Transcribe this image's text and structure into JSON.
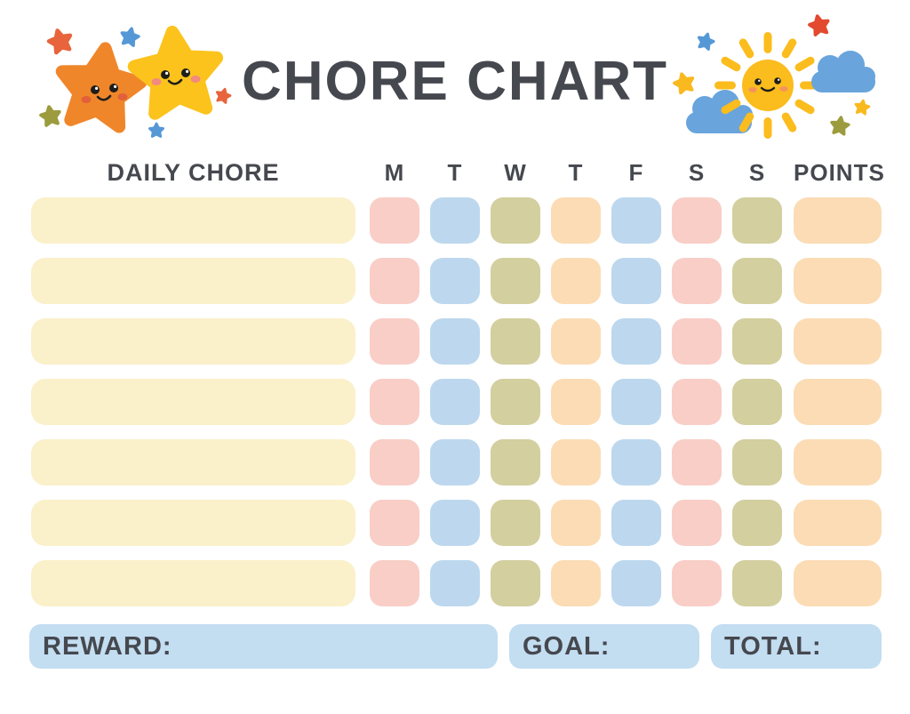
{
  "title": "CHORE CHART",
  "header": {
    "daily_chore_label": "DAILY CHORE",
    "day_labels": [
      "M",
      "T",
      "W",
      "T",
      "F",
      "S",
      "S"
    ],
    "points_label": "POINTS"
  },
  "grid": {
    "row_count": 7,
    "rows": [
      {
        "chore": "",
        "days": [
          "",
          "",
          "",
          "",
          "",
          "",
          ""
        ],
        "points": ""
      },
      {
        "chore": "",
        "days": [
          "",
          "",
          "",
          "",
          "",
          "",
          ""
        ],
        "points": ""
      },
      {
        "chore": "",
        "days": [
          "",
          "",
          "",
          "",
          "",
          "",
          ""
        ],
        "points": ""
      },
      {
        "chore": "",
        "days": [
          "",
          "",
          "",
          "",
          "",
          "",
          ""
        ],
        "points": ""
      },
      {
        "chore": "",
        "days": [
          "",
          "",
          "",
          "",
          "",
          "",
          ""
        ],
        "points": ""
      },
      {
        "chore": "",
        "days": [
          "",
          "",
          "",
          "",
          "",
          "",
          ""
        ],
        "points": ""
      },
      {
        "chore": "",
        "days": [
          "",
          "",
          "",
          "",
          "",
          "",
          ""
        ],
        "points": ""
      }
    ],
    "day_color_cycle": [
      "pink",
      "blue",
      "olive",
      "peach",
      "blue",
      "pink",
      "olive"
    ],
    "chore_color": "cream",
    "points_color": "peach"
  },
  "footer": {
    "reward_label": "REWARD:",
    "goal_label": "GOAL:",
    "total_label": "TOTAL:"
  },
  "colors": {
    "text": "#45484E",
    "cream": "#FAF0CA",
    "pink": "#F8CEC7",
    "blue": "#BDD8EE",
    "olive": "#D3CF9F",
    "peach": "#FBDCB5",
    "footer_box": "#C3DDF1",
    "star_orange": "#F0862A",
    "star_yellow": "#FCC31D",
    "sun_yellow": "#FBBC1D",
    "cloud_blue": "#69A4DC",
    "accent_red": "#E8643C",
    "accent_blue": "#5598D6",
    "accent_olive": "#9C9C3E"
  },
  "decorations": {
    "left": "two-smiling-stars",
    "right": "smiling-sun-with-clouds"
  }
}
